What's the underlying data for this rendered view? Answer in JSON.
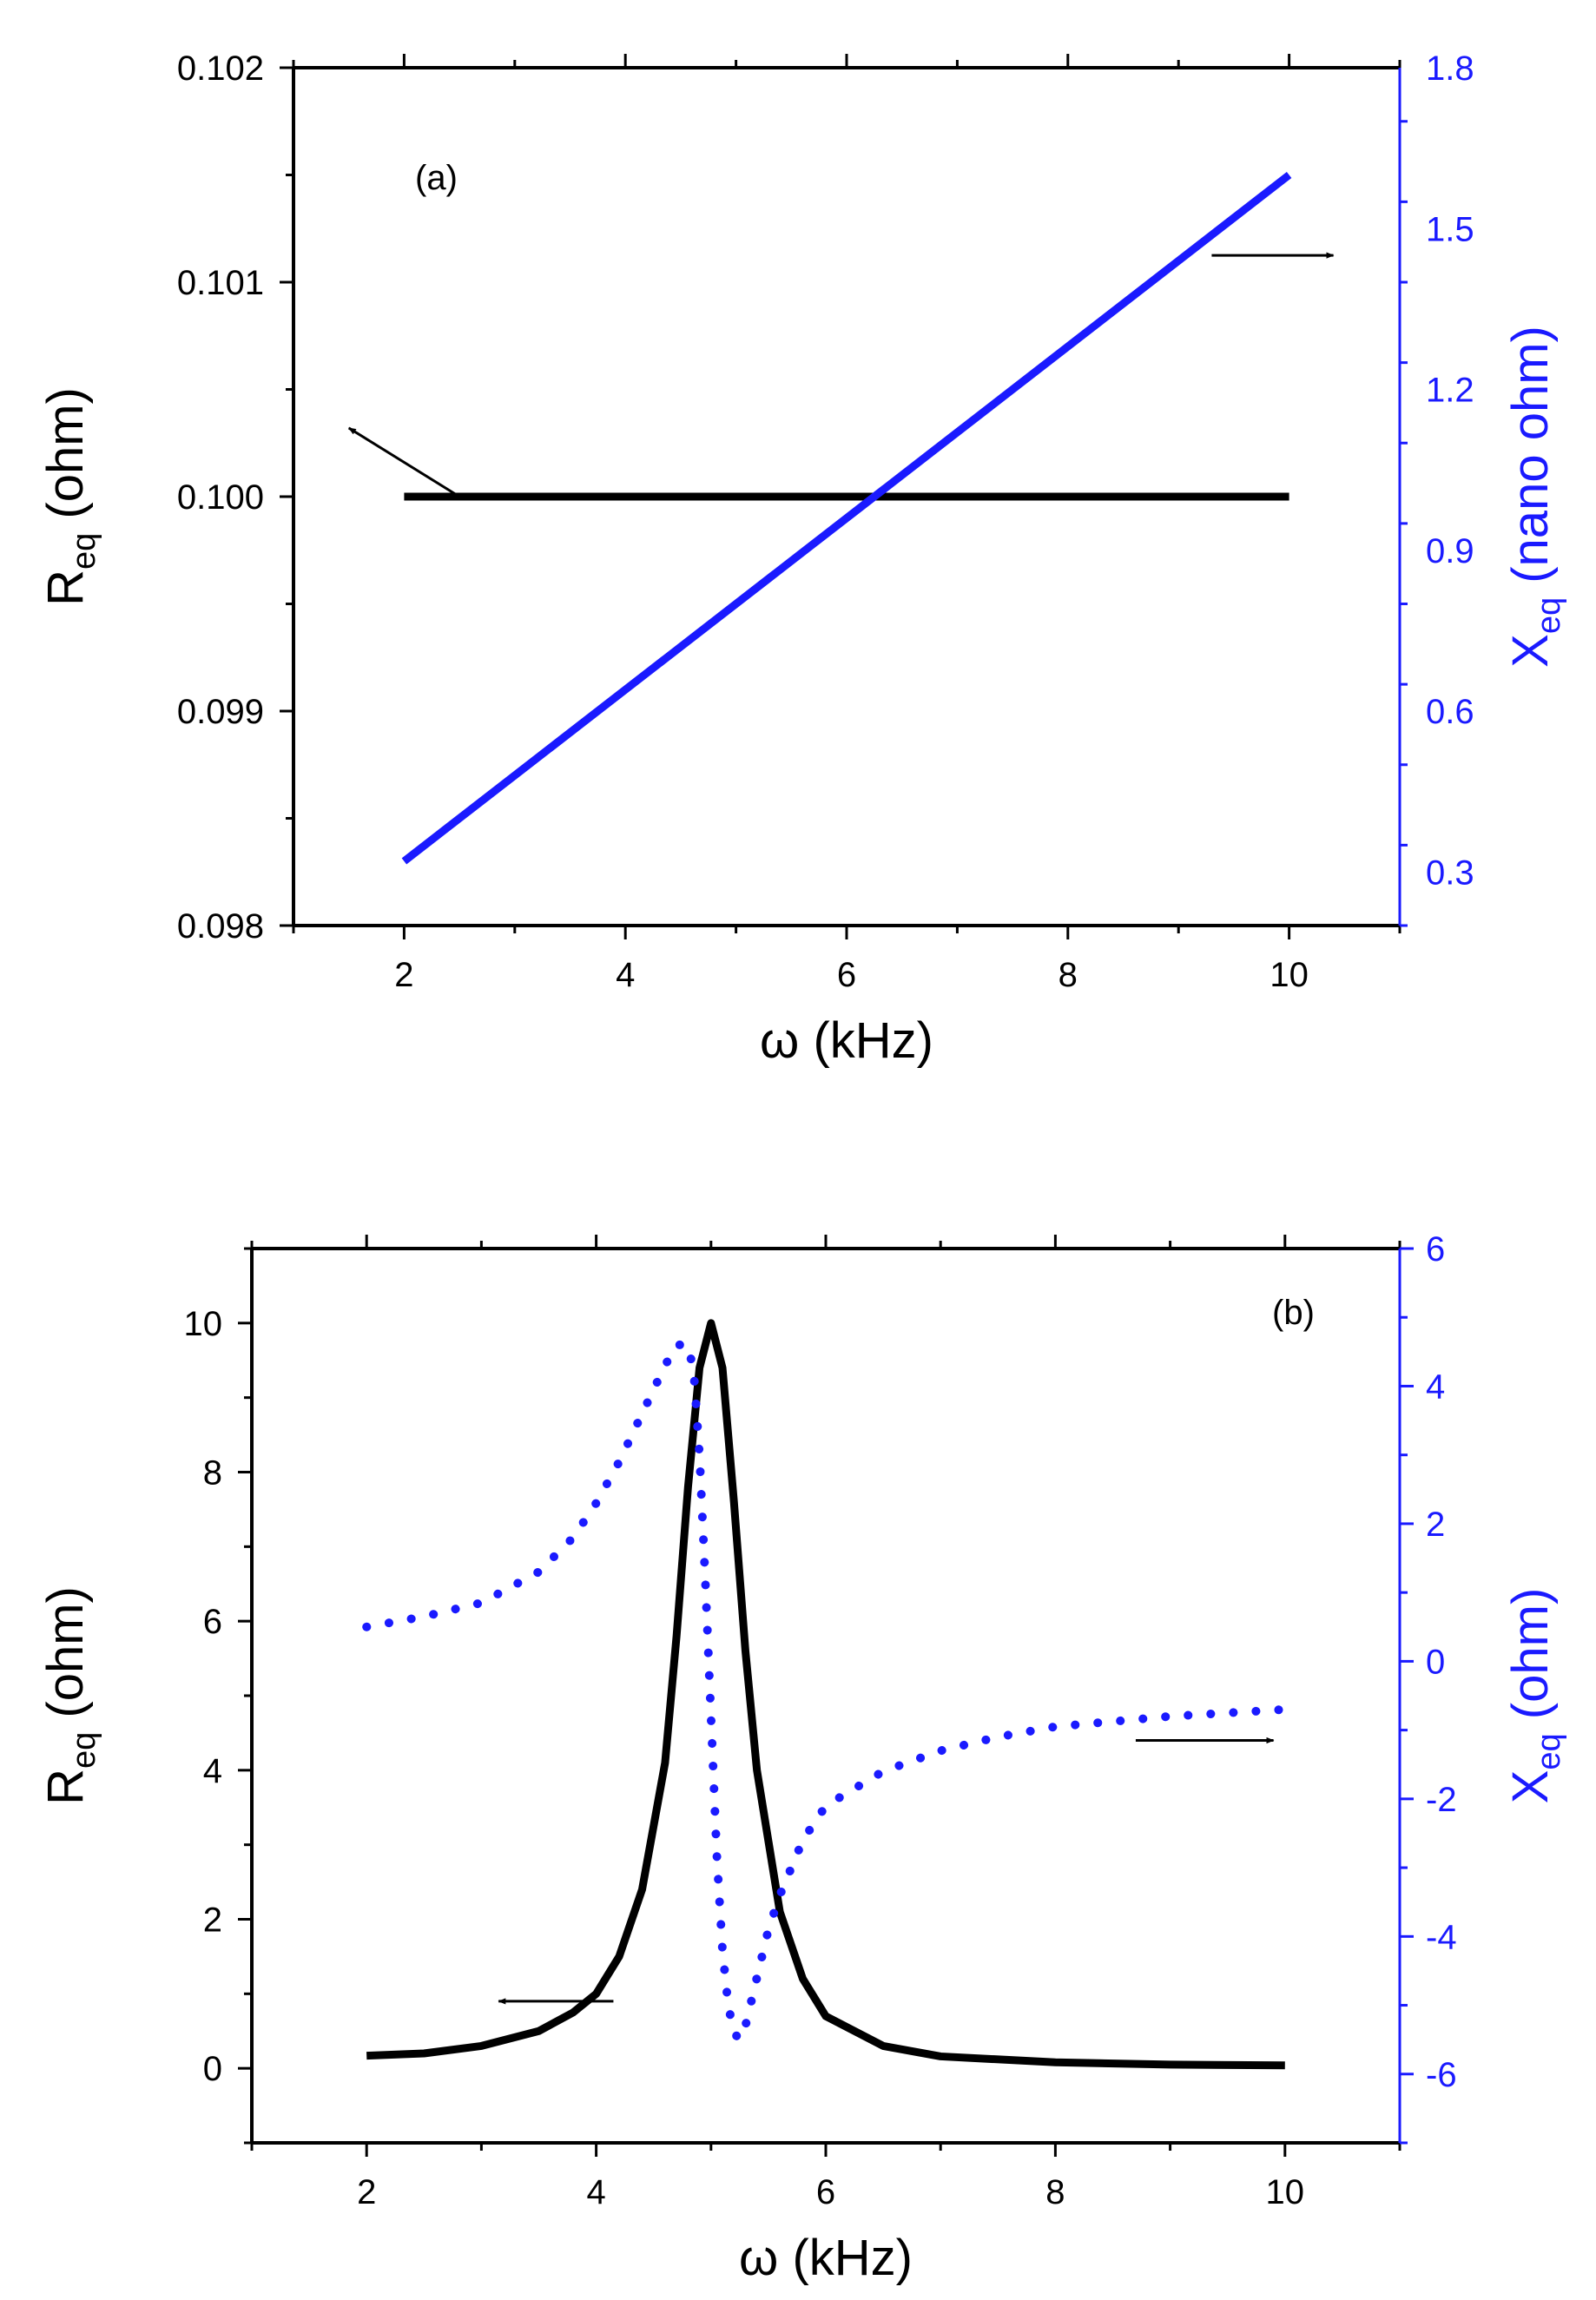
{
  "chart_data": [
    {
      "type": "line",
      "panel_label": "(a)",
      "xlabel": {
        "symbol": "ω",
        "text": " (kHz)"
      },
      "xlim": [
        1,
        11
      ],
      "xticks": [
        2,
        4,
        6,
        8,
        10
      ],
      "ylabel_left": {
        "main": "R",
        "sub": "eq",
        "rest": " (ohm)"
      },
      "ylim_left": [
        0.098,
        0.102
      ],
      "yticks_left": [
        "0.098",
        "0.099",
        "0.100",
        "0.101",
        "0.102"
      ],
      "ylabel_right": {
        "main": "X",
        "sub": "eq",
        "rest": " (nano ohm)"
      },
      "ylim_right": [
        0.2,
        1.8
      ],
      "yticks_right": [
        "0.3",
        "0.6",
        "0.9",
        "1.2",
        "1.5",
        "1.8"
      ],
      "grid": false,
      "colors": {
        "left_axis": "#000000",
        "right_axis": "#1a1aff"
      },
      "series": [
        {
          "axis": "left",
          "color": "#000000",
          "style": "solid",
          "x": [
            2,
            10
          ],
          "y": [
            0.1,
            0.1
          ]
        },
        {
          "axis": "right",
          "color": "#1a1aff",
          "style": "solid",
          "x": [
            2,
            10
          ],
          "y": [
            0.32,
            1.6
          ]
        }
      ],
      "arrows": [
        {
          "from": [
            2.5,
            0.1
          ],
          "to": [
            1.5,
            0.10032
          ],
          "axis": "left"
        },
        {
          "from": [
            9.3,
            1.45
          ],
          "to": [
            10.4,
            1.45
          ],
          "axis": "right"
        }
      ]
    },
    {
      "type": "line",
      "panel_label": "(b)",
      "xlabel": {
        "symbol": "ω",
        "text": " (kHz)"
      },
      "xlim": [
        1,
        11
      ],
      "xticks": [
        2,
        4,
        6,
        8,
        10
      ],
      "ylabel_left": {
        "main": "R",
        "sub": "eq",
        "rest": " (ohm)"
      },
      "ylim_left": [
        -1,
        11
      ],
      "yticks_left": [
        "0",
        "2",
        "4",
        "6",
        "8",
        "10"
      ],
      "ylabel_right": {
        "main": "X",
        "sub": "eq",
        "rest": " (ohm)"
      },
      "ylim_right": [
        -7,
        6
      ],
      "yticks_right": [
        "-6",
        "-4",
        "-2",
        "0",
        "2",
        "4",
        "6"
      ],
      "grid": false,
      "colors": {
        "left_axis": "#000000",
        "right_axis": "#1a1aff"
      },
      "series": [
        {
          "axis": "left",
          "color": "#000000",
          "style": "solid",
          "x": [
            2.0,
            2.5,
            3.0,
            3.5,
            3.8,
            4.0,
            4.2,
            4.4,
            4.6,
            4.7,
            4.8,
            4.9,
            5.0,
            5.1,
            5.2,
            5.3,
            5.4,
            5.6,
            5.8,
            6.0,
            6.5,
            7.0,
            8.0,
            9.0,
            10.0
          ],
          "y": [
            0.17,
            0.2,
            0.3,
            0.5,
            0.75,
            1.0,
            1.5,
            2.4,
            4.1,
            5.8,
            7.8,
            9.4,
            10.0,
            9.4,
            7.6,
            5.6,
            4.0,
            2.1,
            1.2,
            0.7,
            0.3,
            0.16,
            0.08,
            0.05,
            0.04
          ]
        },
        {
          "axis": "right",
          "color": "#1a1aff",
          "style": "dotted",
          "x": [
            2.0,
            2.5,
            3.0,
            3.5,
            3.8,
            4.0,
            4.2,
            4.4,
            4.6,
            4.7,
            4.8,
            4.85,
            4.9,
            4.95,
            5.0,
            5.05,
            5.1,
            5.15,
            5.2,
            5.25,
            5.3,
            5.4,
            5.5,
            5.6,
            5.8,
            6.0,
            6.5,
            7.0,
            7.5,
            8.0,
            9.0,
            10.0
          ],
          "y": [
            0.5,
            0.65,
            0.85,
            1.3,
            1.8,
            2.3,
            2.9,
            3.6,
            4.3,
            4.6,
            4.6,
            4.2,
            3.0,
            1.2,
            -0.8,
            -2.8,
            -4.2,
            -5.0,
            -5.4,
            -5.5,
            -5.3,
            -4.6,
            -3.9,
            -3.4,
            -2.6,
            -2.1,
            -1.6,
            -1.3,
            -1.1,
            -0.95,
            -0.8,
            -0.7
          ]
        }
      ],
      "arrows": [
        {
          "from": [
            4.15,
            0.9
          ],
          "to": [
            3.15,
            0.9
          ],
          "axis": "left"
        },
        {
          "from": [
            8.7,
            -1.15
          ],
          "to": [
            9.9,
            -1.15
          ],
          "axis": "right"
        }
      ]
    }
  ]
}
